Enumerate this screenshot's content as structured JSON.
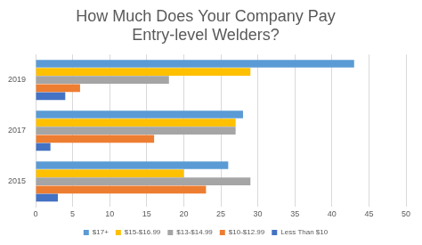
{
  "chart_data": {
    "type": "bar",
    "orientation": "horizontal",
    "title": [
      "How Much Does Your Company Pay",
      "Entry-level Welders?"
    ],
    "categories": [
      "2019",
      "2017",
      "2015"
    ],
    "series": [
      {
        "name": "$17+",
        "color": "#5b9bd5",
        "values": [
          43,
          28,
          26
        ]
      },
      {
        "name": "$15-$16.99",
        "color": "#ffc000",
        "values": [
          29,
          27,
          20
        ]
      },
      {
        "name": "$13-$14.99",
        "color": "#a5a5a5",
        "values": [
          18,
          27,
          29
        ]
      },
      {
        "name": "$10-$12.99",
        "color": "#ed7d31",
        "values": [
          6,
          16,
          23
        ]
      },
      {
        "name": "Less Than $10",
        "color": "#4472c4",
        "values": [
          4,
          2,
          3
        ]
      }
    ],
    "xlim": [
      0,
      50
    ],
    "xticks": [
      0,
      5,
      10,
      15,
      20,
      25,
      30,
      35,
      40,
      45,
      50
    ],
    "grid": true,
    "legend": "bottom"
  }
}
